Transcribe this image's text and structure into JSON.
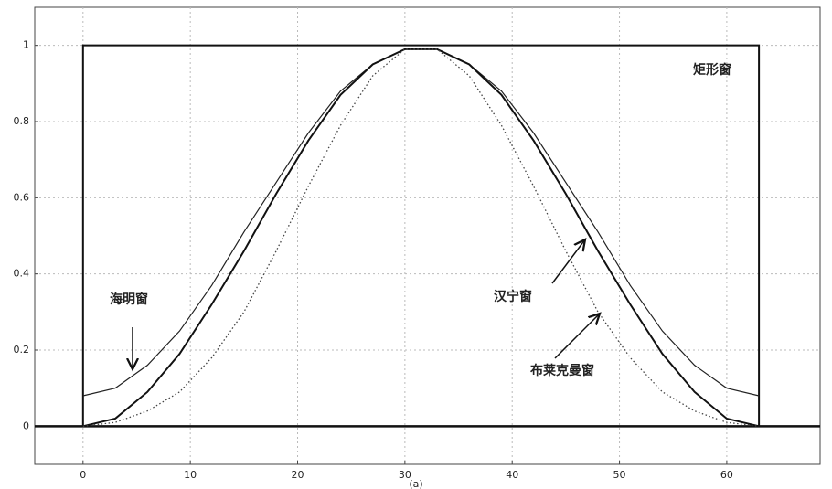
{
  "chart_data": {
    "type": "line",
    "xlim": [
      -4.5,
      68.7
    ],
    "ylim": [
      -0.1,
      1.1
    ],
    "xticks": [
      0,
      10,
      20,
      30,
      40,
      50,
      60
    ],
    "yticks": [
      0,
      0.2,
      0.4,
      0.6,
      0.8,
      1
    ],
    "grid": true,
    "x": [
      0,
      3,
      6,
      9,
      12,
      15,
      18,
      21,
      24,
      27,
      30,
      33,
      36,
      39,
      42,
      45,
      48,
      51,
      54,
      57,
      60,
      63
    ],
    "series": [
      {
        "name": "矩形窗",
        "color": "#111111",
        "style": "solid",
        "width": 2,
        "x": [
          0,
          0,
          63,
          63
        ],
        "values": [
          0,
          1,
          1,
          0
        ]
      },
      {
        "name": "海明窗",
        "color": "#222222",
        "style": "solid",
        "width": 1.2,
        "values": [
          0.08,
          0.1,
          0.16,
          0.25,
          0.37,
          0.51,
          0.64,
          0.77,
          0.88,
          0.95,
          0.99,
          0.99,
          0.95,
          0.88,
          0.77,
          0.64,
          0.51,
          0.37,
          0.25,
          0.16,
          0.1,
          0.08
        ]
      },
      {
        "name": "汉宁窗",
        "color": "#111111",
        "style": "solid",
        "width": 2,
        "values": [
          0,
          0.02,
          0.09,
          0.19,
          0.32,
          0.46,
          0.61,
          0.75,
          0.87,
          0.95,
          0.99,
          0.99,
          0.95,
          0.87,
          0.75,
          0.61,
          0.46,
          0.32,
          0.19,
          0.09,
          0.02,
          0
        ]
      },
      {
        "name": "布莱克曼窗",
        "color": "#444444",
        "style": "dotted",
        "width": 1.3,
        "values": [
          0,
          0.01,
          0.04,
          0.09,
          0.18,
          0.3,
          0.46,
          0.63,
          0.79,
          0.92,
          0.99,
          0.99,
          0.92,
          0.79,
          0.63,
          0.46,
          0.3,
          0.18,
          0.09,
          0.04,
          0.01,
          0
        ]
      }
    ],
    "caption": "(a)"
  }
}
